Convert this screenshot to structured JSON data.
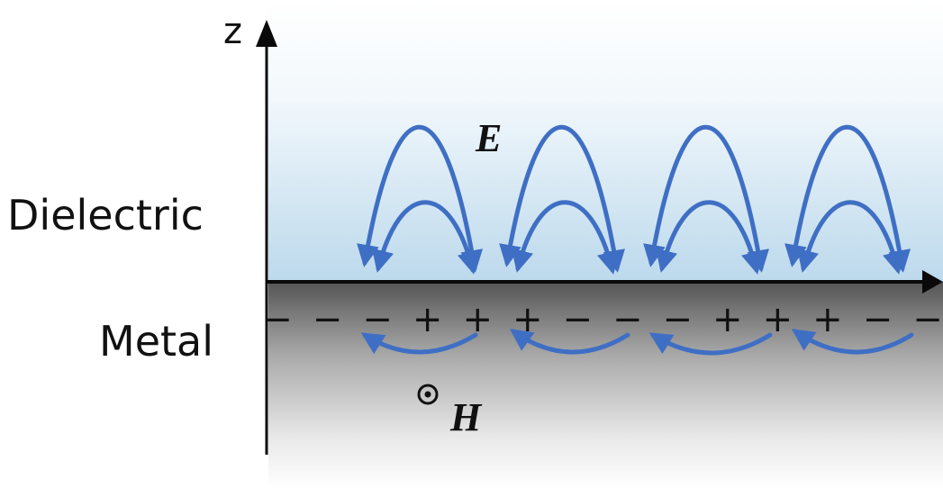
{
  "axis": {
    "z_label": "z"
  },
  "regions": {
    "dielectric_label": "Dielectric",
    "metal_label": "Metal"
  },
  "field_labels": {
    "electric": "E",
    "magnetic": "H",
    "magnetic_symbol": "⊙"
  },
  "surface_charges": [
    "−",
    "−",
    "−",
    "+",
    "+",
    "+",
    "−",
    "−",
    "−",
    "+",
    "+",
    "+",
    "−",
    "−"
  ],
  "colors": {
    "field_lines": "#3f6fc4",
    "dielectric_top": "#ffffff",
    "dielectric_bottom": "#bcd9ec",
    "metal_top": "#5f5f5f",
    "metal_bottom": "#ffffff",
    "interface": "#0a0a0a"
  }
}
